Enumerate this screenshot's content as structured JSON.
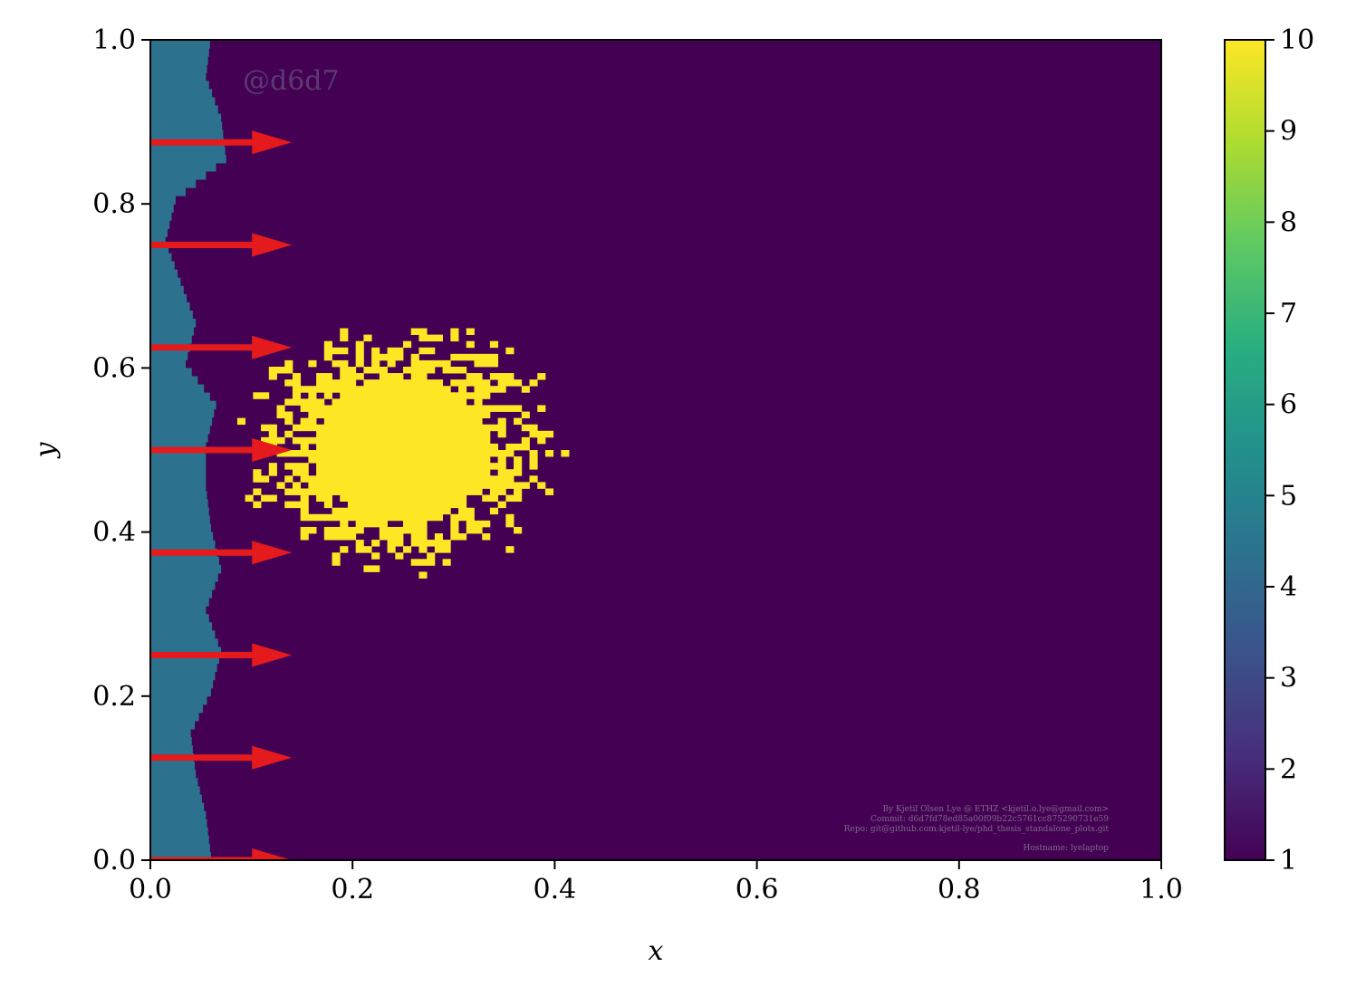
{
  "chart_data": {
    "type": "heatmap",
    "title": "",
    "xlabel": "x",
    "ylabel": "y",
    "xlim": [
      0.0,
      1.0
    ],
    "ylim": [
      0.0,
      1.0
    ],
    "x_ticks": [
      "0.0",
      "0.2",
      "0.4",
      "0.6",
      "0.8",
      "1.0"
    ],
    "y_ticks": [
      "0.0",
      "0.2",
      "0.4",
      "0.6",
      "0.8",
      "1.0"
    ],
    "grid": false,
    "colormap": "viridis",
    "colorbar": {
      "min": 1,
      "max": 10,
      "ticks": [
        "1",
        "2",
        "3",
        "4",
        "5",
        "6",
        "7",
        "8",
        "9",
        "10"
      ]
    },
    "background_value": 1,
    "inlet_value": 4,
    "bubble": {
      "value": 10,
      "center": [
        0.25,
        0.5
      ],
      "radius": 0.1,
      "rough_edge": true
    },
    "inlet_profile": {
      "y": [
        0.0,
        0.05,
        0.1,
        0.15,
        0.2,
        0.25,
        0.3,
        0.35,
        0.4,
        0.45,
        0.5,
        0.55,
        0.6,
        0.65,
        0.7,
        0.75,
        0.8,
        0.85,
        0.9,
        0.95,
        1.0
      ],
      "width": [
        0.06,
        0.055,
        0.045,
        0.04,
        0.06,
        0.07,
        0.055,
        0.07,
        0.06,
        0.055,
        0.055,
        0.065,
        0.035,
        0.045,
        0.03,
        0.015,
        0.025,
        0.075,
        0.07,
        0.055,
        0.06
      ]
    },
    "arrows": {
      "color": "#e41a1c",
      "y": [
        0.0,
        0.125,
        0.25,
        0.375,
        0.5,
        0.625,
        0.75,
        0.875
      ],
      "length": 0.14
    },
    "annotations": {
      "watermark": "@d6d7",
      "credit_lines": [
        "By Kjetil Olsen Lye @ ETHZ <kjetil.o.lye@gmail.com>",
        "Commit: d6d7fd78ed85a00f09b22c5761cc875290731e59",
        "Repo: git@github.com:kjetil-lye/phd_thesis_standalone_plots.git",
        "Hostname: lyelaptop"
      ]
    }
  }
}
